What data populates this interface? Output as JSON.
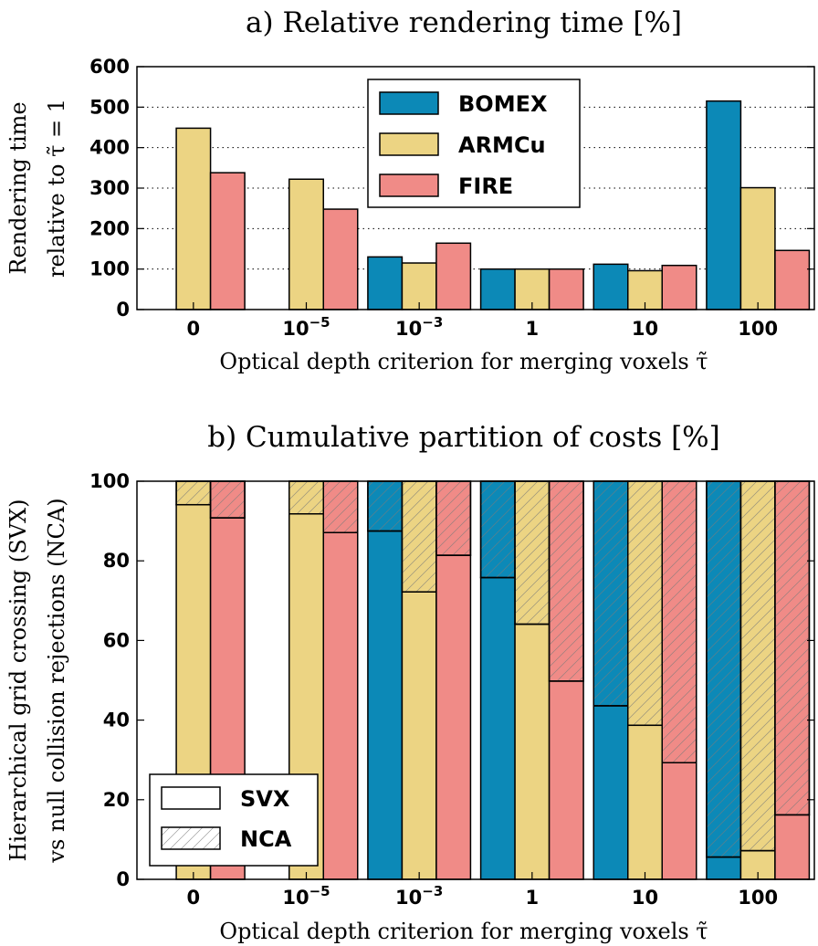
{
  "colors": {
    "BOMEX": "#0c89b7",
    "ARMCu": "#ecd483",
    "FIRE": "#f08b87"
  },
  "chart_data": [
    {
      "type": "bar",
      "title": "a) Relative rendering time [%]",
      "xlabel": "Optical depth criterion for merging voxels τ̃",
      "ylabel_lines": [
        "Rendering time",
        "relative to τ̃ = 1"
      ],
      "categories": [
        "0",
        "10^-5",
        "10^-3",
        "1",
        "10",
        "100"
      ],
      "ylim": [
        0,
        600
      ],
      "yticks": [
        "0",
        "100",
        "200",
        "300",
        "400",
        "500",
        "600"
      ],
      "grid": "horizontal dotted",
      "legend": {
        "placement": "top-center",
        "entries": [
          "BOMEX",
          "ARMCu",
          "FIRE"
        ]
      },
      "series": [
        {
          "name": "BOMEX",
          "values": [
            null,
            null,
            130,
            100,
            112,
            515
          ]
        },
        {
          "name": "ARMCu",
          "values": [
            448,
            322,
            115,
            100,
            96,
            301
          ]
        },
        {
          "name": "FIRE",
          "values": [
            338,
            248,
            164,
            100,
            109,
            146
          ]
        }
      ]
    },
    {
      "type": "bar",
      "stacked": true,
      "title": "b) Cumulative partition of costs [%]",
      "xlabel": "Optical depth criterion for merging voxels τ̃",
      "ylabel_lines": [
        "Hierarchical grid crossing (SVX)",
        "vs null collision rejections (NCA)"
      ],
      "categories": [
        "0",
        "10^-5",
        "10^-3",
        "1",
        "10",
        "100"
      ],
      "ylim": [
        0,
        100
      ],
      "yticks": [
        "0",
        "20",
        "40",
        "60",
        "80",
        "100"
      ],
      "legend": {
        "placement": "bottom-left",
        "entries": [
          "SVX",
          "NCA"
        ]
      },
      "series_svx": [
        {
          "name": "BOMEX",
          "values": [
            null,
            null,
            87.5,
            75.8,
            43.6,
            5.6
          ]
        },
        {
          "name": "ARMCu",
          "values": [
            94.1,
            91.8,
            72.2,
            64.1,
            38.7,
            7.2
          ]
        },
        {
          "name": "FIRE",
          "values": [
            90.8,
            87.1,
            81.4,
            49.8,
            29.3,
            16.2
          ]
        }
      ]
    }
  ]
}
